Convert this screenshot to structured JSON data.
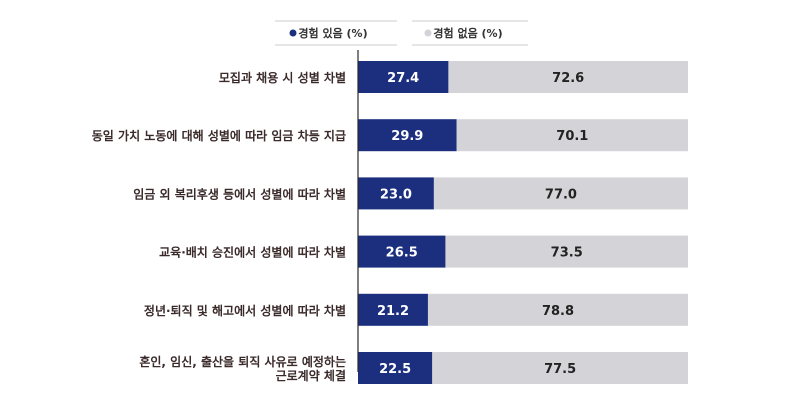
{
  "chart_data": {
    "type": "bar",
    "orientation": "horizontal",
    "stacked": true,
    "categories": [
      [
        "모집과 채용 시 성별 차별"
      ],
      [
        "동일 가치 노동에 대해 성별에 따라 임금 차등 지급"
      ],
      [
        "임금 외 복리후생 등에서 성별에 따라 차별"
      ],
      [
        "교육·배치 승진에서 성별에 따라 차별"
      ],
      [
        "정년·퇴직 및 해고에서 성별에 따라 차별"
      ],
      [
        "혼인, 임신, 출산을 퇴직 사유로 예정하는",
        "근로계약 체결"
      ]
    ],
    "series": [
      {
        "name": "경험 있음 (%)",
        "values": [
          27.4,
          29.9,
          23.0,
          26.5,
          21.2,
          22.5
        ],
        "labels": [
          "27.4",
          "29.9",
          "23.0",
          "26.5",
          "21.2",
          "22.5"
        ]
      },
      {
        "name": "경험 없음 (%)",
        "values": [
          72.6,
          70.1,
          77.0,
          73.5,
          78.8,
          77.5
        ],
        "labels": [
          "72.6",
          "70.1",
          "77.0",
          "73.5",
          "78.8",
          "77.5"
        ]
      }
    ],
    "xlim": [
      0,
      100
    ],
    "legend_position": "top",
    "grid": false
  },
  "colors": {
    "series": [
      "#1b2f7e",
      "#d4d4d8"
    ],
    "value_text": [
      "#ffffff",
      "#222222"
    ],
    "axis": "#2a2a2a",
    "legend_rule": "#cccccc"
  }
}
